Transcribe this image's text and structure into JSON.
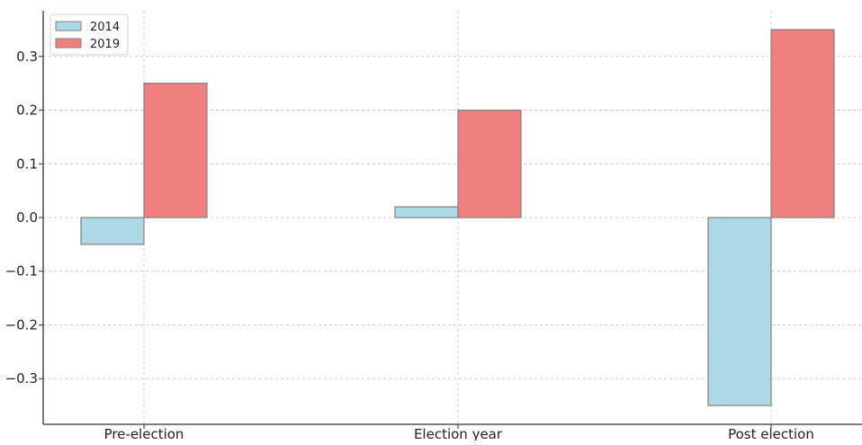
{
  "chart_data": {
    "type": "bar",
    "categories": [
      "Pre-election",
      "Election year",
      "Post election"
    ],
    "series": [
      {
        "name": "2014",
        "values": [
          -0.05,
          0.02,
          -0.35
        ],
        "color": "#add8e6"
      },
      {
        "name": "2019",
        "values": [
          0.25,
          0.2,
          0.35
        ],
        "color": "#f08080"
      }
    ],
    "yticks": [
      -0.3,
      -0.2,
      -0.1,
      0.0,
      0.1,
      0.2,
      0.3
    ],
    "ytick_labels": [
      "−0.3",
      "−0.2",
      "−0.1",
      "0.0",
      "0.1",
      "0.2",
      "0.3"
    ],
    "ylim": [
      -0.385,
      0.385
    ],
    "title": "",
    "xlabel": "",
    "ylabel": "",
    "grid": true,
    "legend_position": "top-left",
    "bar_edge_color": "#808080"
  }
}
